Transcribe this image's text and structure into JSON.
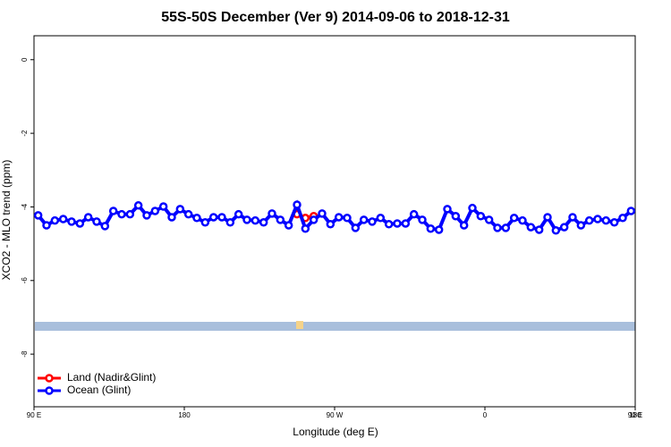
{
  "chart_data": {
    "type": "line",
    "title": "55S-50S December (Ver 9)   2014-09-06 to 2018-12-31",
    "xlabel": "Longitude (deg E)",
    "ylabel": "XCO2 - MLO trend (ppm)",
    "xlim": [
      90,
      450
    ],
    "xticks": [
      {
        "value": 90,
        "label": "90 E"
      },
      {
        "value": 180,
        "label": "180"
      },
      {
        "value": 270,
        "label": "90 W"
      },
      {
        "value": 360,
        "label": "0"
      },
      {
        "value": 450,
        "label": "90 E"
      },
      {
        "value": 540,
        "label": "180"
      }
    ],
    "ylim": [
      -9.43,
      0.65
    ],
    "yticks": [
      0,
      -2,
      -4,
      -6,
      -8
    ],
    "legend": "bottom-left",
    "series": [
      {
        "name": "Land (Nadir&Glint)",
        "color": "#ff0000",
        "x": [
          247.5,
          252.5,
          257.5
        ],
        "values": [
          -4.2,
          -4.3,
          -4.25
        ]
      },
      {
        "name": "Ocean (Glint)",
        "color": "#0000ff",
        "x": [
          92.5,
          97.5,
          102.5,
          107.5,
          112.5,
          117.5,
          122.5,
          127.5,
          132.5,
          137.5,
          142.5,
          147.5,
          152.5,
          157.5,
          162.5,
          167.5,
          172.5,
          177.5,
          182.5,
          187.5,
          192.5,
          197.5,
          202.5,
          207.5,
          212.5,
          217.5,
          222.5,
          227.5,
          232.5,
          237.5,
          242.5,
          247.5,
          252.5,
          257.5,
          262.5,
          267.5,
          272.5,
          277.5,
          282.5,
          287.5,
          292.5,
          297.5,
          302.5,
          307.5,
          312.5,
          317.5,
          322.5,
          327.5,
          332.5,
          337.5,
          342.5,
          347.5,
          352.5,
          357.5,
          362.5,
          367.5,
          372.5,
          377.5,
          382.5,
          387.5,
          392.5,
          397.5,
          402.5,
          407.5,
          412.5,
          417.5,
          422.5,
          427.5,
          432.5,
          437.5,
          442.5,
          447.5
        ],
        "values": [
          -4.23,
          -4.5,
          -4.37,
          -4.33,
          -4.4,
          -4.45,
          -4.28,
          -4.4,
          -4.52,
          -4.11,
          -4.2,
          -4.2,
          -3.96,
          -4.23,
          -4.11,
          -3.99,
          -4.28,
          -4.06,
          -4.2,
          -4.3,
          -4.42,
          -4.28,
          -4.28,
          -4.42,
          -4.2,
          -4.35,
          -4.37,
          -4.42,
          -4.18,
          -4.35,
          -4.5,
          -3.94,
          -4.59,
          -4.35,
          -4.18,
          -4.47,
          -4.28,
          -4.3,
          -4.57,
          -4.35,
          -4.4,
          -4.3,
          -4.47,
          -4.45,
          -4.45,
          -4.2,
          -4.35,
          -4.59,
          -4.62,
          -4.06,
          -4.25,
          -4.5,
          -4.03,
          -4.25,
          -4.35,
          -4.57,
          -4.57,
          -4.3,
          -4.37,
          -4.55,
          -4.62,
          -4.28,
          -4.64,
          -4.55,
          -4.28,
          -4.5,
          -4.37,
          -4.33,
          -4.37,
          -4.42,
          -4.3,
          -4.11
        ]
      }
    ]
  }
}
